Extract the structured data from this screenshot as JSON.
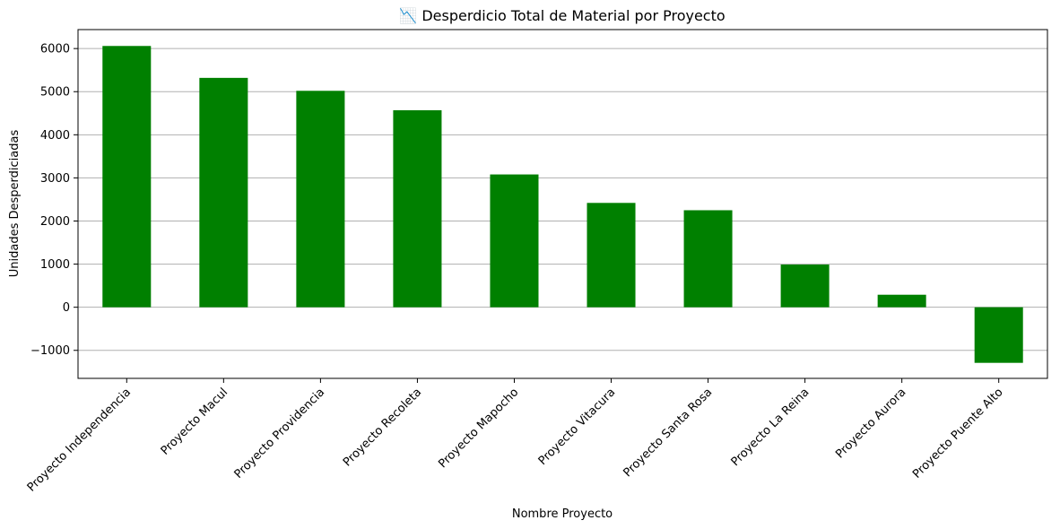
{
  "chart_data": {
    "type": "bar",
    "title": "📉 Desperdicio Total de Material por Proyecto",
    "xlabel": "Nombre Proyecto",
    "ylabel": "Unidades Desperdiciadas",
    "categories": [
      "Proyecto Independencia",
      "Proyecto Macul",
      "Proyecto Providencia",
      "Proyecto Recoleta",
      "Proyecto Mapocho",
      "Proyecto Vitacura",
      "Proyecto Santa Rosa",
      "Proyecto La Reina",
      "Proyecto Aurora",
      "Proyecto Puente Alto"
    ],
    "values": [
      6060,
      5320,
      5020,
      4570,
      3080,
      2420,
      2250,
      990,
      290,
      -1290
    ],
    "ylim": [
      -1650,
      6440
    ],
    "yticks": [
      -1000,
      0,
      1000,
      2000,
      3000,
      4000,
      5000,
      6000
    ],
    "ytick_labels": [
      "−1000",
      "0",
      "1000",
      "2000",
      "3000",
      "4000",
      "5000",
      "6000"
    ],
    "grid": "y",
    "legend": "none",
    "bar_color": "#008000"
  }
}
